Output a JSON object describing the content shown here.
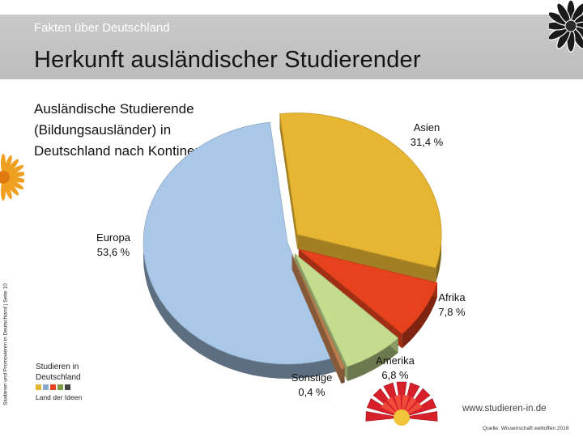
{
  "header": {
    "section": "Fakten über Deutschland",
    "title": "Herkunft ausländischer Studierender"
  },
  "subtitle": "Ausländische Studierende (Bildungsausländer) in Deutschland nach Kontinenten",
  "side_label": "Studieren und Promovieren in Deutschland | Seite 10",
  "logo": {
    "line1": "Studieren in",
    "line2": "Deutschland",
    "line3": "Land der Ideen"
  },
  "website": "www.studieren-in.de",
  "source": "Quelle: Wissenschaft weltoffen 2016",
  "colors": {
    "asien": "#e6b531",
    "afrika": "#e5421d",
    "amerika": "#c5dc8e",
    "sonstige": "#c08050",
    "europa": "#a9c8e8",
    "header": "#c4c4c4"
  },
  "chart_data": {
    "type": "pie",
    "slices": [
      {
        "name": "Asien",
        "value_label": "31,4 %",
        "value": 31.4
      },
      {
        "name": "Afrika",
        "value_label": "7,8 %",
        "value": 7.8
      },
      {
        "name": "Amerika",
        "value_label": "6,8 %",
        "value": 6.8
      },
      {
        "name": "Sonstige",
        "value_label": "0,4 %",
        "value": 0.4
      },
      {
        "name": "Europa",
        "value_label": "53,6 %",
        "value": 53.6
      }
    ],
    "exploded": [
      "Asien",
      "Afrika",
      "Amerika",
      "Sonstige"
    ],
    "style": "3d"
  }
}
